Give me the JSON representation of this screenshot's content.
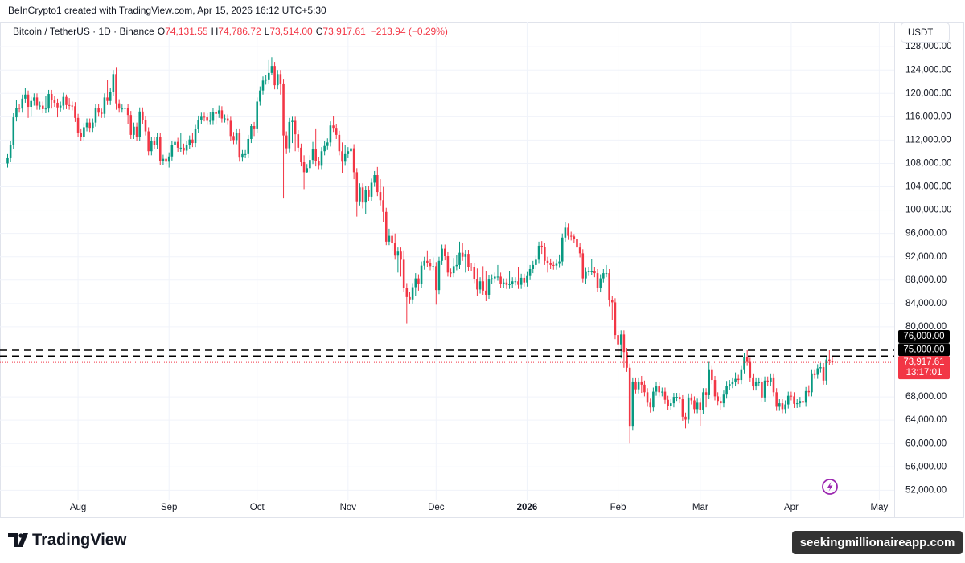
{
  "credit": "BeInCrypto1 created with TradingView.com, Apr 15, 2026 16:12 UTC+5:30",
  "header": {
    "symbol": "Bitcoin / TetherUS · 1D · Binance",
    "ohlc": [
      {
        "label": "O",
        "value": "74,131.55"
      },
      {
        "label": "H",
        "value": "74,786.72"
      },
      {
        "label": "L",
        "value": "73,514.00"
      },
      {
        "label": "C",
        "value": "73,917.61"
      }
    ],
    "change": "−213.94 (−0.29%)",
    "currency": "USDT"
  },
  "footer": {
    "logo": "TradingView",
    "watermark": "seekingmillionaireapp.com"
  },
  "chart_data": {
    "type": "candlestick",
    "up_color": "#089981",
    "down_color": "#f23645",
    "grid": true,
    "xlim": [
      -2.6,
      302.1
    ],
    "xticks": [
      {
        "value": 24,
        "label": "Aug"
      },
      {
        "value": 55,
        "label": "Sep"
      },
      {
        "value": 85,
        "label": "Oct"
      },
      {
        "value": 116,
        "label": "Nov"
      },
      {
        "value": 146,
        "label": "Dec"
      },
      {
        "value": 177,
        "label": "2026",
        "bold": true
      },
      {
        "value": 208,
        "label": "Feb"
      },
      {
        "value": 236,
        "label": "Mar"
      },
      {
        "value": 267,
        "label": "Apr"
      },
      {
        "value": 297,
        "label": "May"
      }
    ],
    "ylim": [
      50400,
      129400
    ],
    "yticks": [
      {
        "value": 128000,
        "label": "128,000.00"
      },
      {
        "value": 124000,
        "label": "124,000.00"
      },
      {
        "value": 120000,
        "label": "120,000.00"
      },
      {
        "value": 116000,
        "label": "116,000.00"
      },
      {
        "value": 112000,
        "label": "112,000.00"
      },
      {
        "value": 108000,
        "label": "108,000.00"
      },
      {
        "value": 104000,
        "label": "104,000.00"
      },
      {
        "value": 100000,
        "label": "100,000.00"
      },
      {
        "value": 96000,
        "label": "96,000.00"
      },
      {
        "value": 92000,
        "label": "92,000.00"
      },
      {
        "value": 88000,
        "label": "88,000.00"
      },
      {
        "value": 84000,
        "label": "84,000.00"
      },
      {
        "value": 80000,
        "label": "80,000.00"
      },
      {
        "value": 68000,
        "label": "68,000.00"
      },
      {
        "value": 64000,
        "label": "64,000.00"
      },
      {
        "value": 60000,
        "label": "60,000.00"
      },
      {
        "value": 56000,
        "label": "56,000.00"
      },
      {
        "value": 52000,
        "label": "52,000.00"
      }
    ],
    "hlines": [
      {
        "value": 76000,
        "label": "76,000.00"
      },
      {
        "value": 75000,
        "label": "75,000.00"
      }
    ],
    "last_price_label": "73,917.61",
    "countdown": "13:17:01",
    "open": [
      108000,
      108900,
      111200,
      115900,
      117500,
      117400,
      119100,
      119800,
      117700,
      118700,
      119300,
      117900,
      117900,
      117300,
      117400,
      119900,
      118800,
      118400,
      117600,
      117900,
      119400,
      118000,
      117900,
      117800,
      115800,
      113300,
      112600,
      114200,
      115000,
      114100,
      115000,
      117500,
      116700,
      116500,
      119300,
      118700,
      120200,
      123300,
      118300,
      117400,
      117400,
      117500,
      116300,
      112900,
      114300,
      112500,
      116900,
      115400,
      113500,
      110100,
      111800,
      111200,
      112600,
      108400,
      108800,
      108300,
      109200,
      111200,
      111700,
      110700,
      110700,
      110200,
      111200,
      112100,
      111500,
      113900,
      115500,
      116000,
      115900,
      115300,
      115300,
      116800,
      116500,
      117100,
      115700,
      115700,
      115300,
      112700,
      112000,
      113300,
      109000,
      109600,
      109600,
      112200,
      114400,
      114000,
      118600,
      120500,
      122200,
      122400,
      123500,
      124700,
      121400,
      123300,
      121700,
      112800,
      110600,
      115100,
      115300,
      113000,
      110700,
      108200,
      106500,
      107200,
      108600,
      110500,
      108400,
      107600,
      110100,
      111000,
      111600,
      114500,
      114100,
      112900,
      110100,
      108300,
      109600,
      110100,
      110600,
      106500,
      101500,
      103900,
      101300,
      103400,
      102300,
      104700,
      106000,
      103100,
      101700,
      99700,
      94600,
      95600,
      94300,
      92200,
      92900,
      91500,
      86600,
      85100,
      84700,
      86800,
      88300,
      87400,
      90500,
      91300,
      90900,
      90400,
      90400,
      86300,
      91300,
      93400,
      92100,
      89300,
      89200,
      90400,
      90600,
      92700,
      92000,
      92500,
      90300,
      90200,
      88200,
      86400,
      87800,
      86200,
      85500,
      88100,
      88300,
      88600,
      88600,
      87400,
      87600,
      87200,
      87300,
      87800,
      87800,
      87200,
      88400,
      87600,
      88700,
      89900,
      90600,
      91500,
      93900,
      93700,
      91300,
      91000,
      90600,
      90500,
      90800,
      91200,
      95300,
      97000,
      95600,
      95500,
      95100,
      93600,
      92600,
      88300,
      89400,
      89500,
      89500,
      89200,
      86600,
      88300,
      89200,
      89200,
      84600,
      84200,
      78600,
      77000,
      78700,
      75700,
      73000,
      62900,
      70500,
      69300,
      70500,
      70100,
      68800,
      67000,
      66200,
      68900,
      69800,
      68800,
      68900,
      67500,
      66400,
      66900,
      68000,
      68000,
      67600,
      64600,
      64100,
      67900,
      67400,
      65900,
      67000,
      65700,
      68800,
      68300,
      72600,
      70900,
      68100,
      67300,
      66900,
      68400,
      69900,
      70200,
      70500,
      71100,
      70900,
      72600,
      74800,
      74000,
      71200,
      69800,
      70500,
      70500,
      67900,
      70800,
      70500,
      71200,
      68800,
      66300,
      66900,
      65900,
      66700,
      68200,
      68100,
      66800,
      66900,
      67300,
      67000,
      69000,
      68800,
      71900,
      71800,
      72900,
      73100,
      70800,
      74400,
      74131.55
    ],
    "high": [
      109600,
      111900,
      116600,
      118900,
      118200,
      119800,
      120900,
      120500,
      119400,
      120000,
      120000,
      118600,
      118600,
      119600,
      120600,
      120600,
      119500,
      119100,
      118600,
      120100,
      119800,
      119200,
      118600,
      118500,
      116500,
      114000,
      114900,
      115700,
      115700,
      115700,
      118200,
      118200,
      117400,
      120000,
      122300,
      120900,
      124000,
      124400,
      119000,
      118100,
      118200,
      118200,
      117000,
      115000,
      115000,
      117600,
      117600,
      116100,
      114200,
      112500,
      112500,
      113300,
      113300,
      109500,
      109500,
      109900,
      111900,
      112400,
      112400,
      113300,
      111400,
      111900,
      112800,
      113200,
      114600,
      116200,
      116700,
      116700,
      116600,
      116800,
      117500,
      117200,
      117900,
      117800,
      116400,
      116400,
      116000,
      113400,
      114000,
      114000,
      110300,
      110300,
      112900,
      114800,
      115100,
      119300,
      121200,
      122900,
      123100,
      125700,
      126200,
      125400,
      124000,
      124000,
      122500,
      113500,
      115800,
      116000,
      116000,
      113700,
      111400,
      109400,
      107900,
      109400,
      111700,
      114000,
      109100,
      110800,
      111900,
      112300,
      115200,
      116100,
      114800,
      113600,
      111600,
      111100,
      110800,
      111300,
      111300,
      107200,
      104600,
      104600,
      104100,
      104100,
      105400,
      106700,
      107400,
      105300,
      104000,
      100400,
      96800,
      96300,
      96000,
      93600,
      93600,
      93100,
      87500,
      86000,
      87500,
      89200,
      89000,
      91200,
      92000,
      93100,
      91600,
      91900,
      91100,
      92000,
      94100,
      94100,
      92800,
      90000,
      91800,
      92300,
      94600,
      94400,
      93200,
      93200,
      91000,
      90900,
      90000,
      88500,
      90400,
      89500,
      88800,
      89000,
      89300,
      90600,
      89300,
      88300,
      88300,
      89500,
      88500,
      88500,
      90300,
      89100,
      89100,
      89400,
      90600,
      91300,
      92200,
      94600,
      94700,
      94400,
      92000,
      91700,
      91200,
      91500,
      92400,
      96000,
      97900,
      97700,
      96300,
      95900,
      95800,
      94300,
      93300,
      90100,
      90300,
      91600,
      90200,
      89900,
      89000,
      89900,
      90600,
      89900,
      85300,
      84900,
      79300,
      79400,
      79400,
      76400,
      73700,
      71200,
      71200,
      71200,
      71600,
      70800,
      69500,
      67700,
      69600,
      70500,
      70500,
      69600,
      69600,
      68200,
      67600,
      68700,
      68700,
      68700,
      68300,
      65300,
      68600,
      68600,
      68100,
      67700,
      67700,
      69500,
      69500,
      74000,
      73300,
      71600,
      68800,
      68000,
      69100,
      70600,
      70900,
      71200,
      72200,
      71800,
      73300,
      75500,
      76000,
      74700,
      71900,
      71200,
      71200,
      71200,
      71500,
      71500,
      71900,
      71900,
      69500,
      67600,
      67600,
      67400,
      68900,
      68900,
      68800,
      67600,
      68000,
      68000,
      69700,
      70000,
      72600,
      72600,
      73600,
      73800,
      73800,
      75100,
      76000,
      74786.72
    ],
    "low": [
      107300,
      108200,
      110500,
      115200,
      116700,
      116700,
      118400,
      115800,
      116000,
      117900,
      117200,
      117200,
      116600,
      116600,
      116700,
      117400,
      117700,
      115900,
      116900,
      117200,
      117300,
      117200,
      117100,
      115100,
      112600,
      111900,
      111900,
      113500,
      113400,
      113400,
      114300,
      116000,
      115800,
      115800,
      118000,
      118000,
      119500,
      117200,
      116700,
      116700,
      116700,
      114700,
      112200,
      112200,
      111800,
      111800,
      114700,
      112800,
      109400,
      109400,
      110500,
      110500,
      107700,
      107700,
      107600,
      107300,
      108500,
      110500,
      110000,
      110000,
      109500,
      109500,
      110500,
      110800,
      110800,
      113200,
      114800,
      115200,
      114600,
      114600,
      114600,
      114800,
      115800,
      115000,
      115000,
      114600,
      111900,
      111300,
      111300,
      108300,
      108300,
      108900,
      108900,
      111500,
      112700,
      113300,
      117900,
      119800,
      121500,
      121700,
      123100,
      120700,
      120700,
      119800,
      102000,
      109600,
      109900,
      111500,
      110100,
      110000,
      107500,
      103600,
      106300,
      106500,
      107900,
      107500,
      106900,
      106900,
      109400,
      110300,
      110900,
      113400,
      112200,
      109400,
      106300,
      107600,
      108900,
      109400,
      105300,
      98900,
      100800,
      100300,
      99300,
      101600,
      101600,
      104000,
      102400,
      100800,
      98000,
      94000,
      94000,
      93000,
      91500,
      89300,
      88600,
      86000,
      80600,
      84000,
      84000,
      85300,
      86200,
      86700,
      89800,
      90200,
      89700,
      89700,
      83800,
      85600,
      90600,
      91400,
      88600,
      88500,
      88500,
      89700,
      89900,
      91300,
      89300,
      89600,
      89500,
      87500,
      85300,
      85700,
      85500,
      84400,
      84800,
      87400,
      87600,
      87900,
      86700,
      86700,
      86500,
      86500,
      86600,
      87100,
      86500,
      86500,
      86900,
      86900,
      88000,
      89200,
      89900,
      90800,
      92500,
      90600,
      89300,
      89900,
      89800,
      89800,
      90100,
      90500,
      94600,
      94900,
      94800,
      94400,
      92900,
      91900,
      87600,
      87300,
      88700,
      88800,
      88500,
      86000,
      85900,
      87600,
      88500,
      83500,
      81100,
      77900,
      75600,
      74600,
      73000,
      72300,
      60000,
      62200,
      68600,
      68600,
      68700,
      68100,
      66300,
      65300,
      65500,
      68200,
      68100,
      68100,
      66800,
      65700,
      65700,
      66200,
      67300,
      66900,
      63900,
      62600,
      63400,
      66700,
      65200,
      65200,
      63000,
      65000,
      66200,
      67600,
      70200,
      67400,
      66600,
      65700,
      66200,
      67700,
      69200,
      69500,
      69800,
      70200,
      70200,
      71900,
      73300,
      70500,
      69100,
      69100,
      69800,
      67200,
      67200,
      69800,
      69800,
      68100,
      65600,
      65600,
      65200,
      65200,
      66000,
      67400,
      66100,
      66100,
      66200,
      66300,
      66300,
      68100,
      68100,
      71100,
      71100,
      72200,
      70100,
      70100,
      73400,
      73514
    ],
    "close": [
      108900,
      111200,
      115900,
      117500,
      117400,
      119100,
      119800,
      117700,
      118700,
      119300,
      117900,
      117900,
      117300,
      117400,
      119900,
      118800,
      118400,
      117600,
      117900,
      119400,
      118000,
      117900,
      117800,
      115800,
      113300,
      112600,
      114200,
      115000,
      114100,
      115000,
      117500,
      116700,
      116500,
      119300,
      118700,
      120200,
      123300,
      118300,
      117400,
      117400,
      117500,
      116300,
      112900,
      114300,
      112500,
      116900,
      115400,
      113500,
      110100,
      111800,
      111200,
      112600,
      108400,
      108800,
      108300,
      109200,
      111200,
      111700,
      110700,
      110700,
      110200,
      111200,
      112100,
      111500,
      113900,
      115500,
      116000,
      115900,
      115300,
      115300,
      116800,
      116500,
      117100,
      115700,
      115700,
      115300,
      112700,
      112000,
      113300,
      109000,
      109600,
      109600,
      112200,
      114400,
      114000,
      118600,
      120500,
      122200,
      122400,
      123500,
      124700,
      121400,
      123300,
      121700,
      112800,
      110600,
      115100,
      115300,
      113000,
      110700,
      108200,
      106500,
      107200,
      108600,
      110500,
      108400,
      107600,
      110100,
      111000,
      111600,
      114500,
      114100,
      112900,
      110100,
      108300,
      109600,
      110100,
      110600,
      106500,
      101500,
      103900,
      101300,
      103400,
      102300,
      104700,
      106000,
      103100,
      101700,
      99700,
      94600,
      95600,
      94300,
      92200,
      92900,
      91500,
      86600,
      85100,
      84700,
      86800,
      88300,
      87400,
      90500,
      91300,
      90900,
      90400,
      90400,
      86300,
      91300,
      93400,
      92100,
      89300,
      89200,
      90400,
      90600,
      92700,
      92000,
      92500,
      90300,
      90200,
      88200,
      86400,
      87800,
      86200,
      85500,
      88100,
      88300,
      88600,
      88600,
      87400,
      87600,
      87200,
      87300,
      87800,
      87800,
      87200,
      88400,
      87600,
      88700,
      89900,
      90600,
      91500,
      93900,
      93700,
      91300,
      91000,
      90600,
      90500,
      90800,
      91200,
      95300,
      97000,
      95600,
      95500,
      95100,
      93600,
      92600,
      88300,
      89400,
      89500,
      89500,
      89200,
      86600,
      88300,
      89200,
      89200,
      84600,
      84200,
      78600,
      77000,
      78700,
      75700,
      73000,
      62900,
      70500,
      69300,
      70500,
      70100,
      68800,
      67000,
      66200,
      68900,
      69800,
      68800,
      68900,
      67500,
      66400,
      66900,
      68000,
      68000,
      67600,
      64600,
      64100,
      67900,
      67400,
      65900,
      67000,
      65700,
      68800,
      68300,
      72600,
      70900,
      68100,
      67300,
      66900,
      68400,
      69900,
      70200,
      70500,
      71100,
      70900,
      72600,
      74800,
      74000,
      71200,
      69800,
      70500,
      70500,
      67900,
      70800,
      70500,
      71200,
      68800,
      66300,
      66900,
      65900,
      66700,
      68200,
      68100,
      66800,
      66900,
      67300,
      67000,
      69000,
      68800,
      71900,
      71800,
      72900,
      73100,
      70800,
      74400,
      74131.55,
      73917.61
    ]
  }
}
